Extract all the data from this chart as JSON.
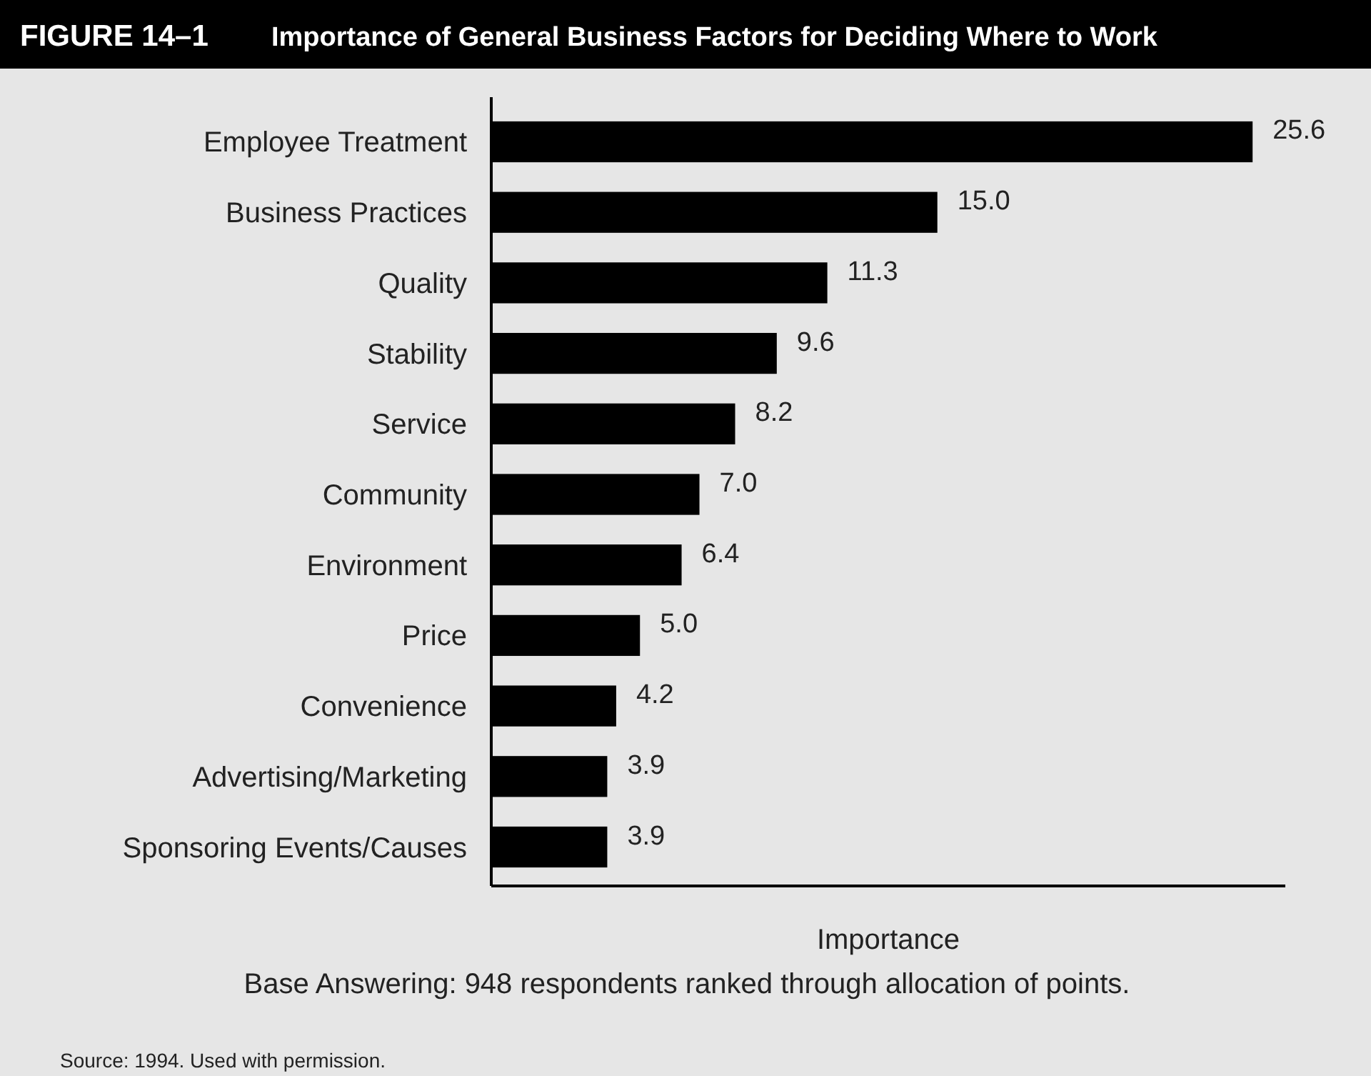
{
  "chart_data": {
    "type": "bar",
    "orientation": "horizontal",
    "title": "FIGURE 14–1",
    "subtitle": "Importance of General Business Factors for Deciding Where to Work",
    "xlabel": "Importance",
    "categories": [
      "Employee Treatment",
      "Business Practices",
      "Quality",
      "Stability",
      "Service",
      "Community",
      "Environment",
      "Price",
      "Convenience",
      "Advertising/Marketing",
      "Sponsoring Events/Causes"
    ],
    "values": [
      25.6,
      15.0,
      11.3,
      9.6,
      8.2,
      7.0,
      6.4,
      5.0,
      4.2,
      3.9,
      3.9
    ],
    "value_labels": [
      "25.6",
      "15.0",
      "11.3",
      "9.6",
      "8.2",
      "7.0",
      "6.4",
      "5.0",
      "4.2",
      "3.9",
      "3.9"
    ],
    "color": "#000000",
    "xlim": [
      0,
      26.7
    ],
    "tick_labels": "y",
    "annotations": [
      "Base Answering: 948 respondents ranked through allocation of points.",
      "Source: 1994. Used with permission."
    ]
  }
}
